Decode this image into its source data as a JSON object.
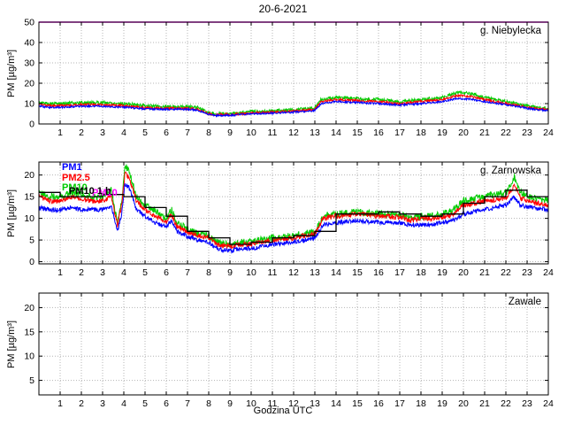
{
  "title": "20-6-2021",
  "xlabel": "Godzina UTC",
  "ylabel": "PM [µg/m³]",
  "colors": {
    "pm1": "#0000ff",
    "pm25": "#ff0000",
    "pm10": "#00cc00",
    "pm10_1h": "#000000",
    "norm": "#ff00ff",
    "grid": "#b4b4b4",
    "frame": "#000000"
  },
  "legend": [
    {
      "label": "PM1",
      "color": "#0000ff"
    },
    {
      "label": "PM2.5",
      "color": "#ff0000"
    },
    {
      "label": "PM10",
      "color": "#00cc00"
    },
    {
      "label": "PM10 1 h",
      "color": "#000000"
    },
    {
      "label": "PM10",
      "color": "#ff00ff"
    }
  ],
  "chart_data": [
    {
      "type": "line",
      "station": "g. Niebylecka",
      "xlim": [
        0,
        24
      ],
      "xticks": [
        1,
        2,
        3,
        4,
        5,
        6,
        7,
        8,
        9,
        10,
        11,
        12,
        13,
        14,
        15,
        16,
        17,
        18,
        19,
        20,
        21,
        22,
        23,
        24
      ],
      "ylim": [
        0,
        50
      ],
      "yticks": [
        0,
        10,
        20,
        30,
        40,
        50
      ],
      "norm_line": {
        "value": 50,
        "color": "#ff00ff"
      },
      "series": [
        {
          "name": "PM10",
          "color": "#00cc00",
          "noise": 0.8,
          "x": [
            0,
            0.5,
            1,
            2,
            3,
            4,
            4.5,
            5,
            6,
            7,
            7.5,
            8,
            8.3,
            9,
            9.5,
            10,
            11,
            12,
            13,
            13.3,
            14,
            15,
            16,
            17,
            18,
            19,
            19.7,
            20.3,
            21,
            22,
            23,
            23.5,
            24
          ],
          "y": [
            10.5,
            10,
            10,
            10.5,
            10.5,
            10,
            9.5,
            9,
            8.5,
            8.5,
            8,
            5.5,
            5,
            5,
            5.5,
            6,
            6.5,
            7,
            8,
            12,
            13,
            12.5,
            12,
            11,
            12,
            13,
            15.5,
            15,
            13,
            11,
            9,
            8,
            7.5
          ]
        },
        {
          "name": "PM2.5",
          "color": "#ff0000",
          "noise": 0.55,
          "x": [
            0,
            0.5,
            1,
            2,
            3,
            4,
            4.5,
            5,
            6,
            7,
            7.5,
            8,
            8.3,
            9,
            9.5,
            10,
            11,
            12,
            13,
            13.3,
            14,
            15,
            16,
            17,
            18,
            19,
            19.7,
            20.3,
            21,
            22,
            23,
            23.5,
            24
          ],
          "y": [
            9.5,
            9,
            9,
            9.5,
            9.5,
            9,
            8.5,
            8,
            7.7,
            7.7,
            7.2,
            5,
            4.6,
            4.6,
            5,
            5.4,
            5.8,
            6.3,
            7.2,
            11,
            12,
            11.5,
            11,
            10,
            11,
            12,
            14,
            13.5,
            12,
            10,
            8.2,
            7.4,
            7
          ]
        },
        {
          "name": "PM1",
          "color": "#0000ff",
          "noise": 0.45,
          "x": [
            0,
            0.5,
            1,
            2,
            3,
            4,
            4.5,
            5,
            6,
            7,
            7.5,
            8,
            8.3,
            9,
            9.5,
            10,
            11,
            12,
            13,
            13.3,
            14,
            15,
            16,
            17,
            18,
            19,
            19.7,
            20.3,
            21,
            22,
            23,
            23.5,
            24
          ],
          "y": [
            8.7,
            8.2,
            8.2,
            8.7,
            8.7,
            8.2,
            7.8,
            7.4,
            7.2,
            7.2,
            6.7,
            4.6,
            4.2,
            4.2,
            4.6,
            5,
            5.3,
            5.8,
            6.6,
            10,
            11,
            10.5,
            10,
            9.3,
            10,
            11,
            12.5,
            12.2,
            11,
            9.5,
            7.7,
            7,
            6.6
          ]
        }
      ]
    },
    {
      "type": "line",
      "station": "g. Zarnowska",
      "xlim": [
        0,
        24
      ],
      "xticks": [
        1,
        2,
        3,
        4,
        5,
        6,
        7,
        8,
        9,
        10,
        11,
        12,
        13,
        14,
        15,
        16,
        17,
        18,
        19,
        20,
        21,
        22,
        23,
        24
      ],
      "ylim": [
        -0.5,
        23
      ],
      "yticks": [
        0,
        5,
        10,
        15,
        20
      ],
      "legend": true,
      "series": [
        {
          "name": "PM10",
          "color": "#00cc00",
          "noise": 0.8,
          "x": [
            0,
            0.5,
            1,
            1.5,
            2,
            2.5,
            3,
            3.4,
            3.7,
            3.9,
            4.05,
            4.25,
            4.6,
            5,
            5.5,
            6,
            6.25,
            6.5,
            7,
            7.5,
            8,
            8.4,
            9,
            9.5,
            10,
            10.5,
            11,
            12,
            13,
            13.4,
            14,
            15,
            16,
            17,
            17.5,
            18,
            18.5,
            19,
            19.5,
            20,
            20.5,
            21,
            21.5,
            22,
            22.4,
            22.7,
            23,
            23.5,
            24
          ],
          "y": [
            16,
            15,
            15,
            16,
            15.5,
            15,
            15,
            16.5,
            9,
            14,
            22,
            21,
            15,
            13,
            11.5,
            10,
            12,
            9,
            7.5,
            6.5,
            6,
            4.5,
            4,
            4.5,
            4.5,
            5,
            5.5,
            6,
            7,
            10.5,
            11,
            11.5,
            11,
            11,
            10,
            10.5,
            10.5,
            11,
            12,
            14,
            14.5,
            15,
            15.5,
            16,
            19.5,
            16,
            15,
            14.5,
            14
          ]
        },
        {
          "name": "PM2.5",
          "color": "#ff0000",
          "noise": 0.6,
          "x": [
            0,
            0.5,
            1,
            1.5,
            2,
            2.5,
            3,
            3.4,
            3.7,
            3.9,
            4.05,
            4.25,
            4.6,
            5,
            5.5,
            6,
            6.25,
            6.5,
            7,
            7.5,
            8,
            8.4,
            9,
            9.5,
            10,
            10.5,
            11,
            12,
            13,
            13.4,
            14,
            15,
            16,
            17,
            17.5,
            18,
            18.5,
            19,
            19.5,
            20,
            20.5,
            21,
            21.5,
            22,
            22.4,
            22.7,
            23,
            23.5,
            24
          ],
          "y": [
            15,
            14,
            14,
            15,
            14.5,
            14,
            14,
            15.3,
            8.5,
            13,
            20.5,
            19.5,
            14,
            12,
            10.5,
            9.2,
            11,
            8.2,
            6.8,
            6,
            5.5,
            4,
            3.5,
            4,
            4,
            4.5,
            5,
            5.5,
            6.5,
            10,
            10.5,
            11,
            10.5,
            10.3,
            9.5,
            10,
            10,
            10.3,
            11,
            13,
            13.5,
            14,
            14.3,
            14.8,
            17.5,
            14.8,
            14,
            13.5,
            13
          ]
        },
        {
          "name": "PM1",
          "color": "#0000ff",
          "noise": 0.5,
          "x": [
            0,
            0.5,
            1,
            1.5,
            2,
            2.5,
            3,
            3.4,
            3.7,
            3.9,
            4.05,
            4.25,
            4.6,
            5,
            5.5,
            6,
            6.25,
            6.5,
            7,
            7.5,
            8,
            8.4,
            9,
            9.5,
            10,
            10.5,
            11,
            12,
            13,
            13.4,
            14,
            15,
            16,
            17,
            17.5,
            18,
            18.5,
            19,
            19.5,
            20,
            20.5,
            21,
            21.5,
            22,
            22.4,
            22.7,
            23,
            23.5,
            24
          ],
          "y": [
            12.5,
            12,
            12,
            12.5,
            12,
            12,
            12,
            13,
            7,
            11,
            18,
            17,
            12,
            10.5,
            9,
            8,
            9.5,
            7,
            5.8,
            5,
            4.5,
            3,
            2.5,
            3,
            3,
            3.5,
            4,
            4.5,
            5.5,
            8.5,
            9,
            9.5,
            9,
            9,
            8.5,
            8.5,
            8.5,
            9,
            9.5,
            11,
            11.5,
            12,
            12.5,
            13,
            15,
            13,
            12.7,
            12.3,
            12
          ]
        }
      ],
      "step_series": {
        "name": "PM10 1 h",
        "color": "#000000",
        "values": [
          16,
          15,
          15,
          15.5,
          15,
          12.5,
          10.5,
          7,
          5.5,
          4,
          4.5,
          5.5,
          6,
          7,
          11,
          11,
          11.5,
          11,
          10.5,
          11,
          13.5,
          15,
          16.5,
          15
        ]
      }
    },
    {
      "type": "line",
      "station": "Zawale",
      "xlim": [
        0,
        24
      ],
      "xticks": [
        1,
        2,
        3,
        4,
        5,
        6,
        7,
        8,
        9,
        10,
        11,
        12,
        13,
        14,
        15,
        16,
        17,
        18,
        19,
        20,
        21,
        22,
        23,
        24
      ],
      "ylim": [
        2,
        23
      ],
      "yticks": [
        5,
        10,
        15,
        20
      ],
      "series": []
    }
  ]
}
